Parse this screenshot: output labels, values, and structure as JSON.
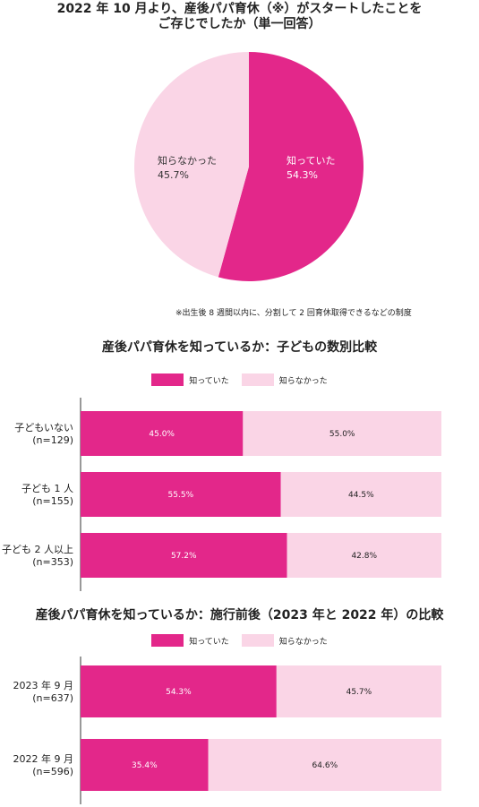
{
  "colors": {
    "known": "#e3278a",
    "unknown": "#fad5e6",
    "axis": "#333333"
  },
  "pie": {
    "title_line1": "2022 年 10 月より、産後パパ育休（※）がスタートしたことを",
    "title_line2": "ご存じでしたか（単一回答）",
    "note": "※出生後 8 週間以内に、分割して 2 回育休取得できるなどの制度"
  },
  "bar1": {
    "title": "産後パパ育休を知っているか：子どもの数別比較"
  },
  "bar2": {
    "title": "産後パパ育休を知っているか：施行前後（2023 年と 2022 年）の比較"
  },
  "legend": {
    "known": "知っていた",
    "unknown": "知らなかった"
  },
  "chart_data": [
    {
      "type": "pie",
      "title": "2022 年 10 月より、産後パパ育休（※）がスタートしたことを ご存じでしたか（単一回答）",
      "slices": [
        {
          "label": "知っていた",
          "value": 54.3,
          "display": "54.3%",
          "color": "#e3278a"
        },
        {
          "label": "知らなかった",
          "value": 45.7,
          "display": "45.7%",
          "color": "#fad5e6"
        }
      ]
    },
    {
      "type": "bar",
      "orientation": "horizontal-stacked-100",
      "title": "産後パパ育休を知っているか：子どもの数別比較",
      "categories": [
        {
          "line1": "子どもいない",
          "line2": "(n=129)"
        },
        {
          "line1": "子ども 1 人",
          "line2": "(n=155)"
        },
        {
          "line1": "子ども 2 人以上",
          "line2": "(n=353)"
        }
      ],
      "series": [
        {
          "name": "知っていた",
          "values": [
            45.0,
            55.5,
            57.2
          ],
          "labels": [
            "45.0%",
            "55.5%",
            "57.2%"
          ]
        },
        {
          "name": "知らなかった",
          "values": [
            55.0,
            44.5,
            42.8
          ],
          "labels": [
            "55.0%",
            "44.5%",
            "42.8%"
          ]
        }
      ],
      "legend_position": "top"
    },
    {
      "type": "bar",
      "orientation": "horizontal-stacked-100",
      "title": "産後パパ育休を知っているか：施行前後（2023 年と 2022 年）の比較",
      "categories": [
        {
          "line1": "2023 年 9 月",
          "line2": "(n=637)"
        },
        {
          "line1": "2022 年 9 月",
          "line2": "(n=596)"
        }
      ],
      "series": [
        {
          "name": "知っていた",
          "values": [
            54.3,
            35.4
          ],
          "labels": [
            "54.3%",
            "35.4%"
          ]
        },
        {
          "name": "知らなかった",
          "values": [
            45.7,
            64.6
          ],
          "labels": [
            "45.7%",
            "64.6%"
          ]
        }
      ],
      "legend_position": "top"
    }
  ]
}
